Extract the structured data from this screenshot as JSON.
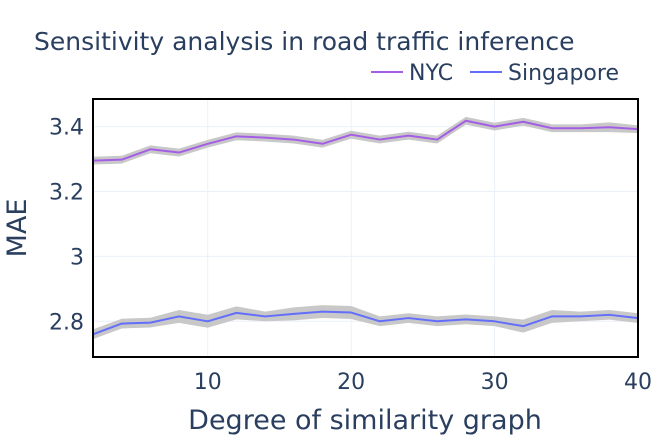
{
  "chart_data": {
    "type": "line",
    "title": "Sensitivity analysis in road traffic inference",
    "xlabel": "Degree of similarity graph",
    "ylabel": "MAE",
    "xlim": [
      2,
      40
    ],
    "ylim": [
      2.69,
      3.485
    ],
    "xticks": [
      10,
      20,
      30,
      40
    ],
    "xtick_labels": [
      "10",
      "20",
      "30",
      "40"
    ],
    "yticks": [
      2.8,
      3.0,
      3.2,
      3.4
    ],
    "ytick_labels": [
      "2.8",
      "3",
      "3.2",
      "3.4"
    ],
    "grid": true,
    "legend_position": "top-right",
    "x": [
      2,
      4,
      6,
      8,
      10,
      12,
      14,
      16,
      18,
      20,
      22,
      24,
      26,
      28,
      30,
      32,
      34,
      36,
      38,
      40
    ],
    "series": [
      {
        "name": "NYC",
        "color": "#a45ee5",
        "band_color": "#c8c8c8",
        "values": [
          3.295,
          3.298,
          3.33,
          3.32,
          3.347,
          3.37,
          3.366,
          3.36,
          3.347,
          3.375,
          3.36,
          3.372,
          3.36,
          3.418,
          3.4,
          3.415,
          3.395,
          3.395,
          3.398,
          3.392
        ],
        "band": [
          0.012,
          0.012,
          0.012,
          0.012,
          0.012,
          0.012,
          0.012,
          0.012,
          0.012,
          0.012,
          0.012,
          0.012,
          0.012,
          0.012,
          0.012,
          0.012,
          0.012,
          0.012,
          0.015,
          0.012
        ]
      },
      {
        "name": "Singapore",
        "color": "#636efa",
        "band_color": "#c8c8c8",
        "values": [
          2.76,
          2.793,
          2.796,
          2.815,
          2.8,
          2.826,
          2.815,
          2.823,
          2.83,
          2.827,
          2.8,
          2.81,
          2.8,
          2.806,
          2.8,
          2.785,
          2.815,
          2.815,
          2.82,
          2.81
        ],
        "band": [
          0.015,
          0.015,
          0.015,
          0.02,
          0.02,
          0.02,
          0.015,
          0.02,
          0.02,
          0.02,
          0.015,
          0.015,
          0.015,
          0.015,
          0.015,
          0.02,
          0.02,
          0.015,
          0.015,
          0.015
        ]
      }
    ]
  }
}
